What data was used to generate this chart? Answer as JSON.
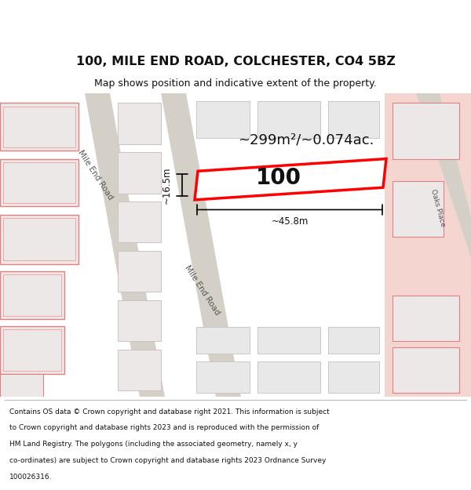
{
  "title_line1": "100, MILE END ROAD, COLCHESTER, CO4 5BZ",
  "title_line2": "Map shows position and indicative extent of the property.",
  "property_number": "100",
  "area_text": "~299m²/~0.074ac.",
  "width_label": "~45.8m",
  "height_label": "~16.5m",
  "road_label_top": "Mile End Road",
  "road_label_bottom": "Mile End Road",
  "road_label_right": "Oaks Place",
  "footer_lines": [
    "Contains OS data © Crown copyright and database right 2021. This information is subject",
    "to Crown copyright and database rights 2023 and is reproduced with the permission of",
    "HM Land Registry. The polygons (including the associated geometry, namely x, y",
    "co-ordinates) are subject to Crown copyright and database rights 2023 Ordnance Survey",
    "100026316."
  ],
  "map_bg": "#f0ede8",
  "road_color": "#d4d0c8",
  "left_bldg_fill": "#ede8e8",
  "left_bldg_edge": "#e08080",
  "center_bldg_fill": "#e8e8e8",
  "center_bldg_edge": "#c8c8c8",
  "right_highlight_fill": "#f5d5d0",
  "property_stroke": "#ff0000",
  "property_fill": "#ffffff",
  "text_color": "#111111",
  "road_text_color": "#555555",
  "footer_bg": "#ffffff"
}
